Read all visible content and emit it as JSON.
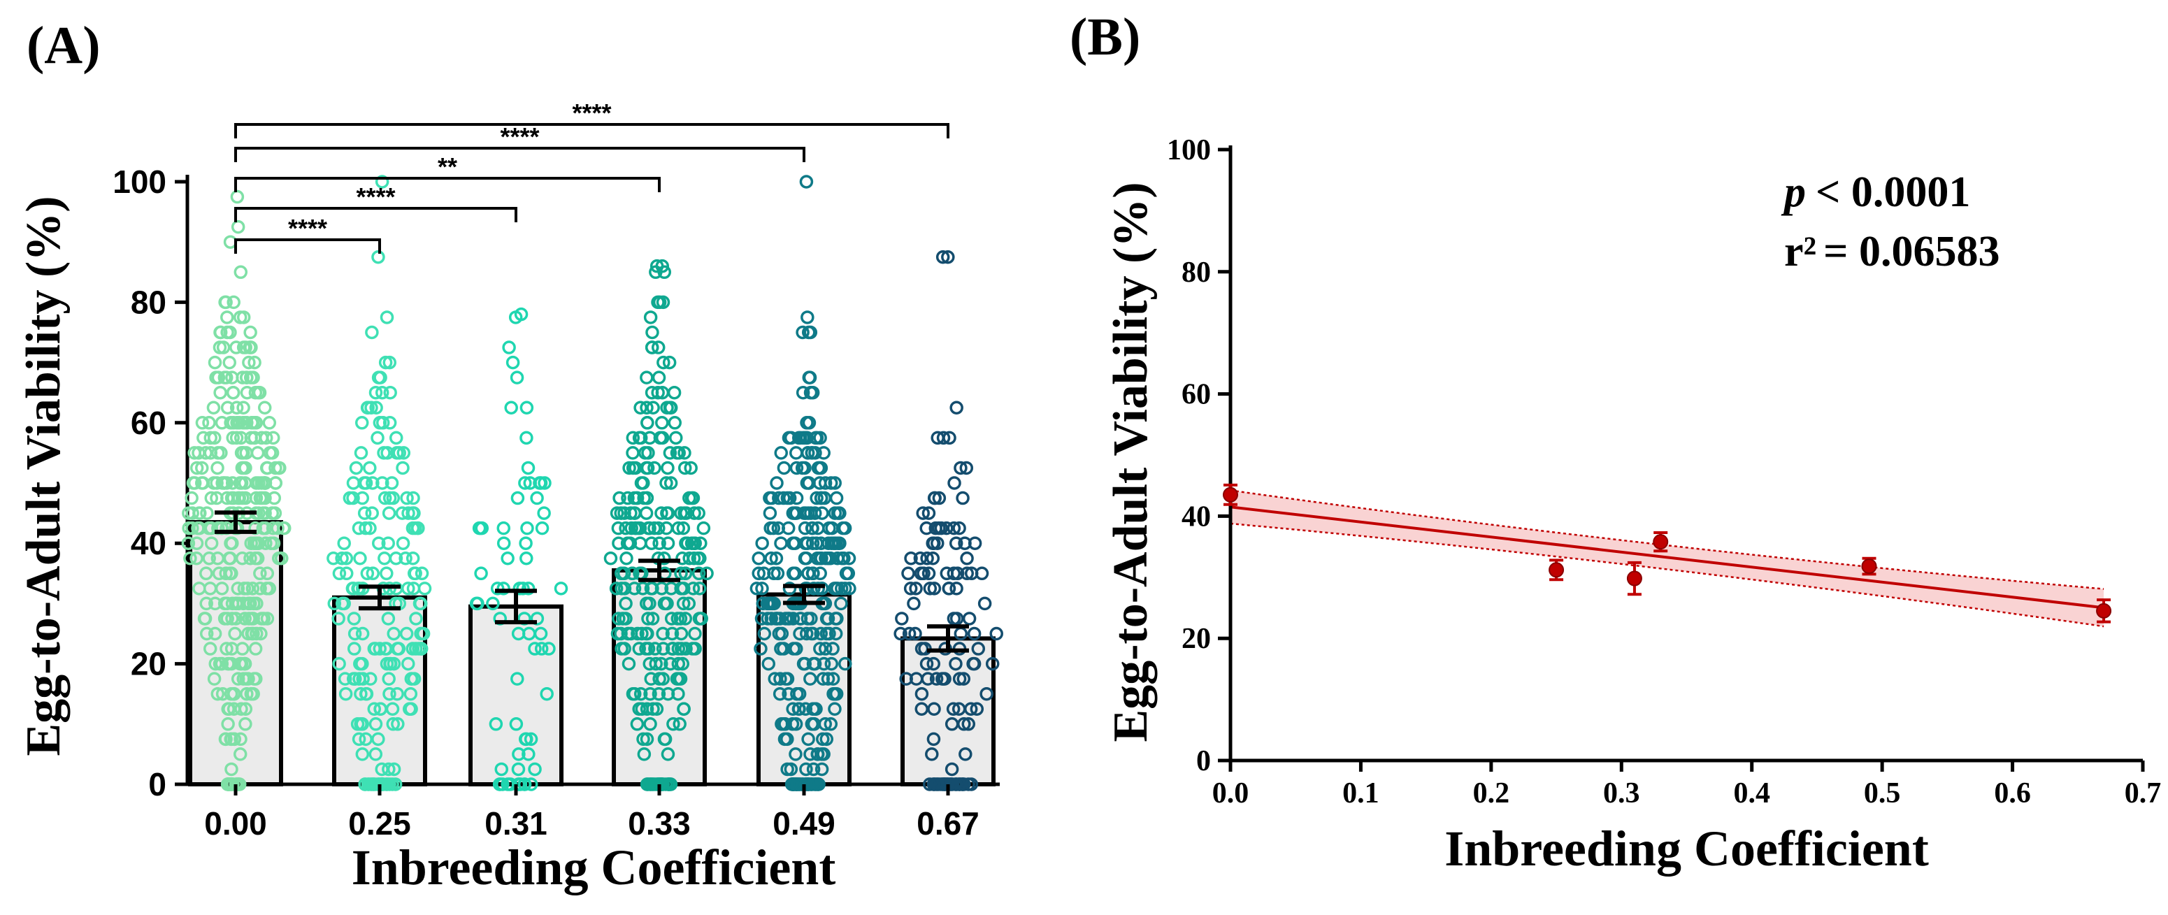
{
  "panel_a_label": "(A)",
  "panel_b_label": "(B)",
  "colors": {
    "bar_fill": "#ebebeb",
    "axis": "#000000",
    "fit_line": "#c00000",
    "fit_band": "#f5b5b5",
    "point": "#c00000",
    "groups": [
      "#7fe0a6",
      "#3fe0b4",
      "#1fd6b0",
      "#0fa890",
      "#0f7a88",
      "#144d6e"
    ]
  },
  "chart_data": [
    {
      "type": "bar",
      "panel": "A",
      "title": "",
      "xlabel": "Inbreeding Coefficient",
      "ylabel": "Egg-to-Adult Viability (%)",
      "categories": [
        "0.00",
        "0.25",
        "0.31",
        "0.33",
        "0.49",
        "0.67"
      ],
      "values": [
        43.5,
        31,
        29.5,
        35.5,
        31.5,
        24.2
      ],
      "errors": [
        1.6,
        1.8,
        2.6,
        1.6,
        1.4,
        2.0
      ],
      "ylim": [
        0,
        100
      ],
      "yticks": [
        "0",
        "20",
        "40",
        "60",
        "80",
        "100"
      ],
      "points_per_group": [
        320,
        190,
        70,
        260,
        300,
        130
      ],
      "max_points": [
        98,
        100,
        78,
        86,
        100,
        88
      ],
      "significance": [
        {
          "from": 0,
          "to": 5,
          "label": "****"
        },
        {
          "from": 0,
          "to": 4,
          "label": "****"
        },
        {
          "from": 0,
          "to": 3,
          "label": "**"
        },
        {
          "from": 0,
          "to": 2,
          "label": "****"
        },
        {
          "from": 0,
          "to": 1,
          "label": "****"
        }
      ]
    },
    {
      "type": "scatter",
      "panel": "B",
      "title": "",
      "xlabel": "Inbreeding Coefficient",
      "ylabel": "Egg-to-Adult Viability (%)",
      "x": [
        0.0,
        0.25,
        0.31,
        0.33,
        0.49,
        0.67
      ],
      "y": [
        43.5,
        31.2,
        29.8,
        35.8,
        31.8,
        24.5
      ],
      "errors": [
        1.6,
        1.6,
        2.6,
        1.5,
        1.3,
        1.8
      ],
      "xlim": [
        0,
        0.7
      ],
      "ylim": [
        0,
        100
      ],
      "xticks": [
        "0.0",
        "0.1",
        "0.2",
        "0.3",
        "0.4",
        "0.5",
        "0.6",
        "0.7"
      ],
      "yticks": [
        "0",
        "20",
        "40",
        "60",
        "80",
        "100"
      ],
      "fit": {
        "intercept": 41.5,
        "slope": -24.6,
        "band_halfwidth": 1.7
      },
      "annotation": {
        "p_label": "p",
        "p_value": "< 0.0001",
        "r2_label": "r²",
        "r2_value": "= 0.06583"
      }
    }
  ]
}
